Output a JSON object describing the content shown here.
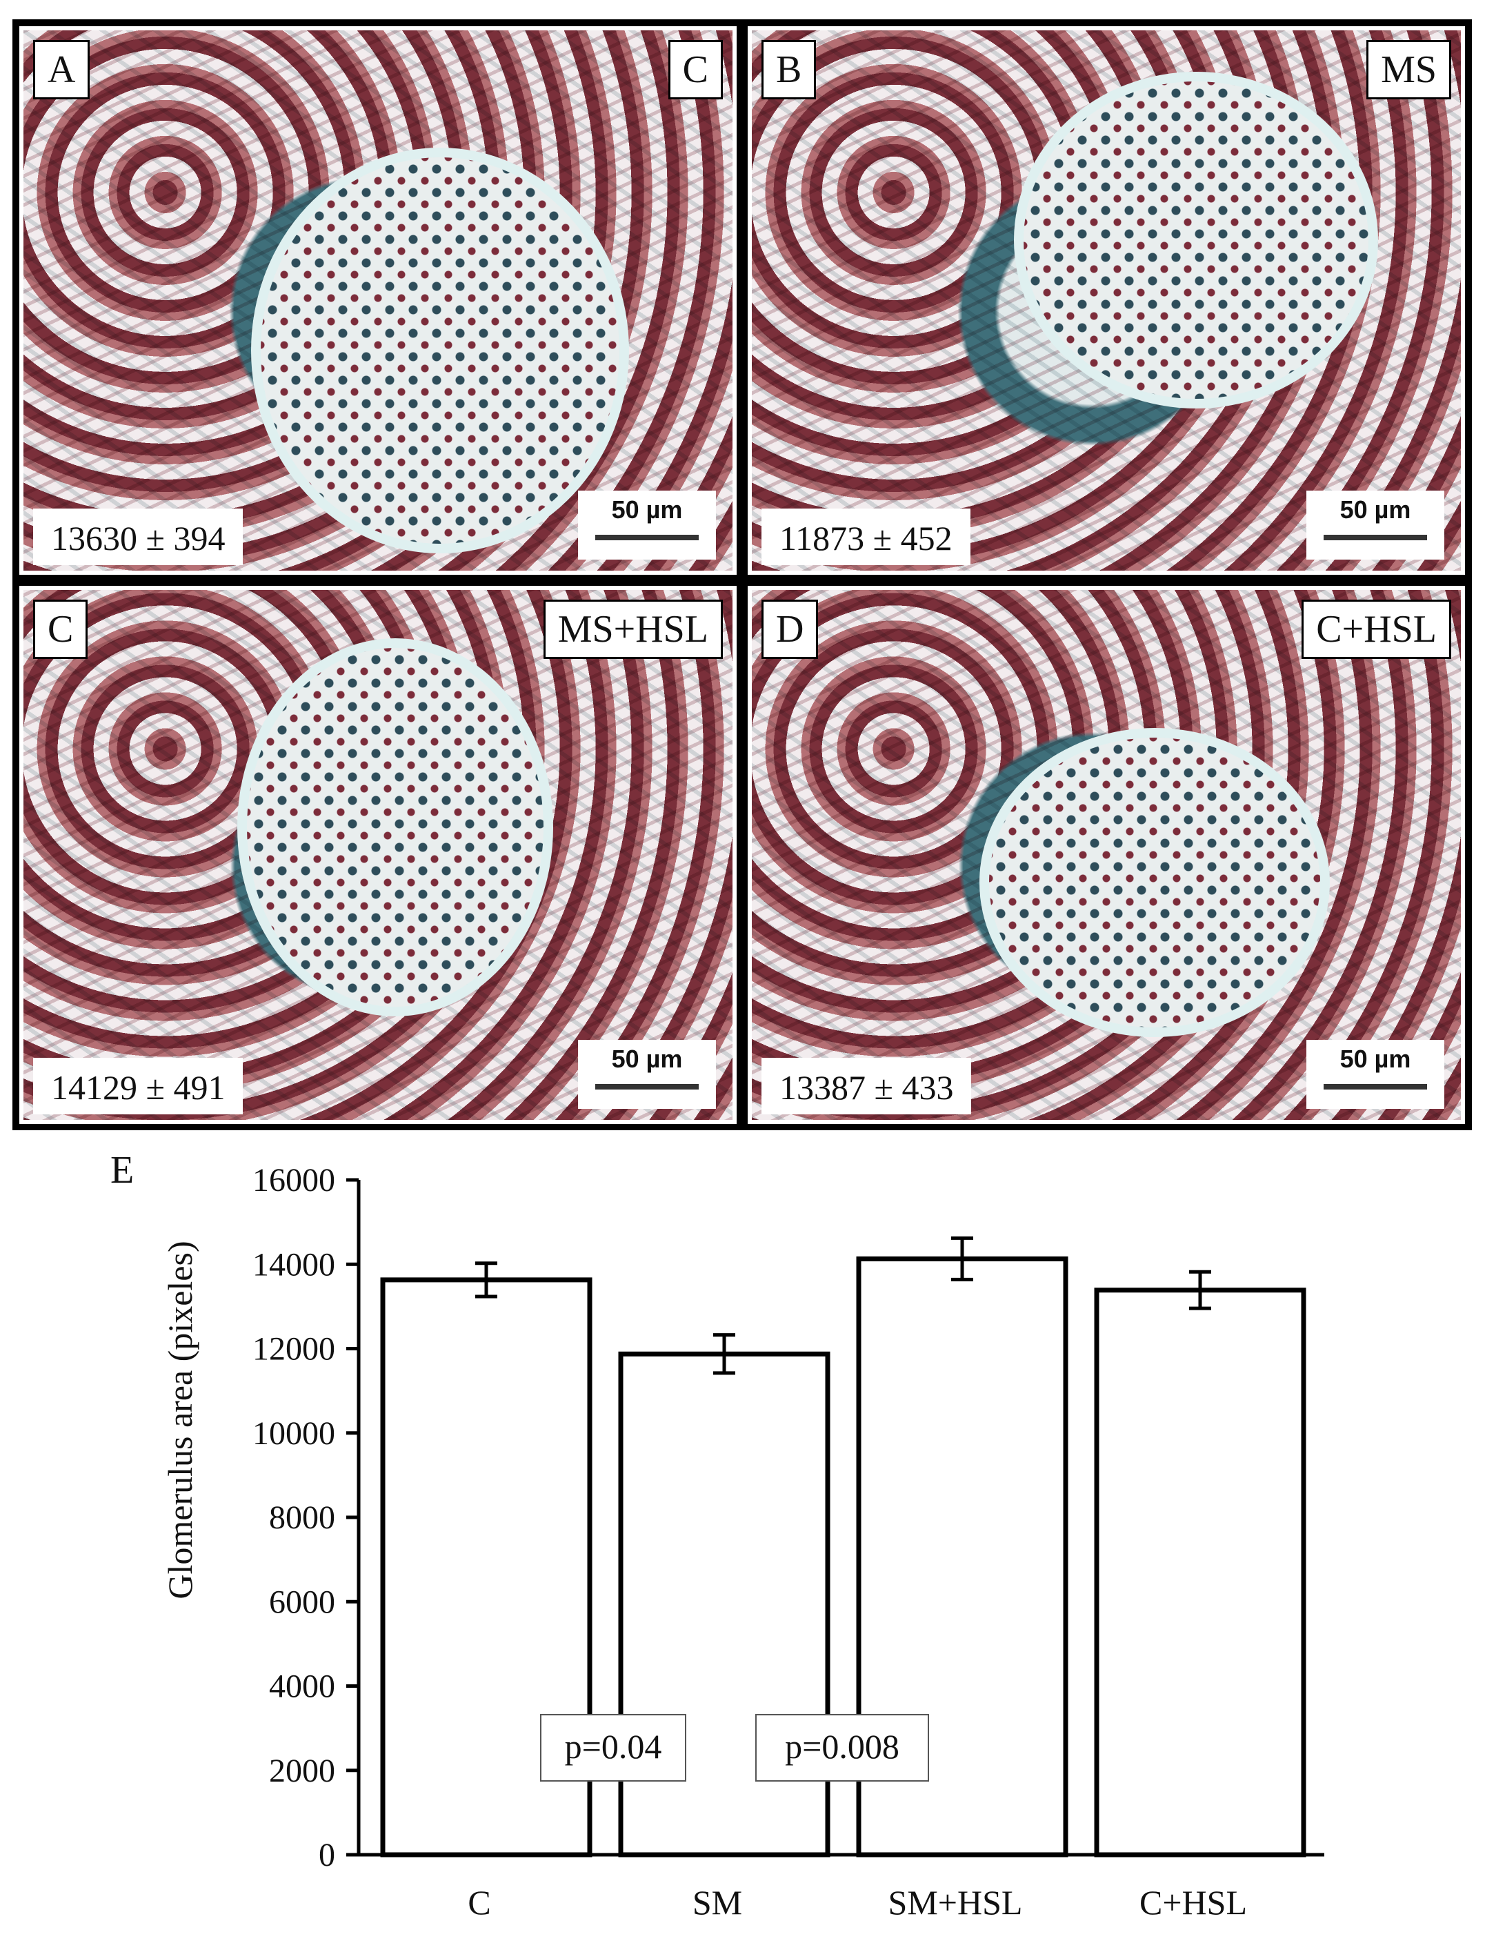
{
  "panels": [
    {
      "letter": "A",
      "group": "C",
      "value": "13630 ± 394",
      "scale": "50 µm"
    },
    {
      "letter": "B",
      "group": "MS",
      "value": "11873  ± 452",
      "scale": "50 µm"
    },
    {
      "letter": "C",
      "group": "MS+HSL",
      "value": "14129 ± 491",
      "scale": "50 µm"
    },
    {
      "letter": "D",
      "group": "C+HSL",
      "value": "13387 ± 433",
      "scale": "50 µm"
    }
  ],
  "chart_panel_letter": "E",
  "chart_data": {
    "type": "bar",
    "categories": [
      "C",
      "SM",
      "SM+HSL",
      "C+HSL"
    ],
    "values": [
      13630,
      11873,
      14129,
      13387
    ],
    "errors": [
      394,
      452,
      491,
      433
    ],
    "ylabel": "Glomerulus area (pixeles)",
    "xlabel": "",
    "ylim": [
      0,
      16000
    ],
    "yticks": [
      0,
      2000,
      4000,
      6000,
      8000,
      10000,
      12000,
      14000,
      16000
    ],
    "annotations": [
      "p=0.04",
      "p=0.008"
    ],
    "grid": false,
    "colors": {
      "bar_fill": "#ffffff",
      "bar_stroke": "#000000"
    }
  }
}
